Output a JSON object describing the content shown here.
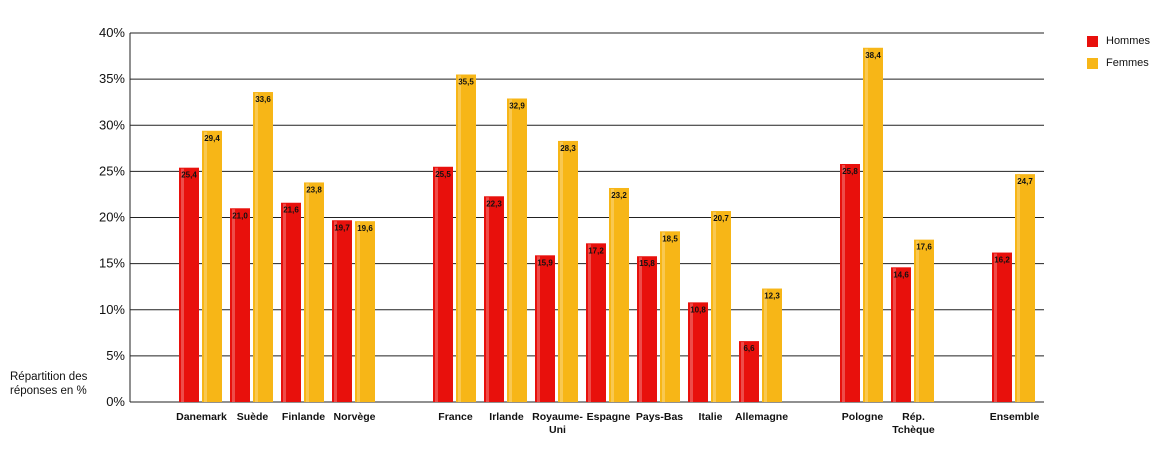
{
  "chart_data": {
    "type": "bar",
    "ylabel": [
      "Répartition des",
      "réponses en %"
    ],
    "ylim": [
      0,
      40
    ],
    "yticks": [
      "0%",
      "5%",
      "10%",
      "15%",
      "20%",
      "25%",
      "30%",
      "35%",
      "40%"
    ],
    "groups": [
      [
        "Danemark",
        "Suède",
        "Finlande",
        "Norvège"
      ],
      [
        "France",
        "Irlande",
        "Royaume-Uni",
        "Espagne",
        "Pays-Bas",
        "Italie",
        "Allemagne"
      ],
      [
        "Pologne",
        "Rép. Tchèque"
      ],
      [
        "Ensemble"
      ]
    ],
    "categories": [
      [
        "Danemark"
      ],
      [
        "Suède"
      ],
      [
        "Finlande"
      ],
      [
        "Norvège"
      ],
      [
        "France"
      ],
      [
        "Irlande"
      ],
      [
        "Royaume-",
        "Uni"
      ],
      [
        "Espagne"
      ],
      [
        "Pays-Bas"
      ],
      [
        "Italie"
      ],
      [
        "Allemagne"
      ],
      [
        "Pologne"
      ],
      [
        "Rép.",
        "Tchèque"
      ],
      [
        "Ensemble"
      ]
    ],
    "series": [
      {
        "name": "Hommes",
        "color": "#e8100c",
        "values": [
          25.4,
          21.0,
          21.6,
          19.7,
          25.5,
          22.3,
          15.9,
          17.2,
          15.8,
          10.8,
          6.6,
          25.8,
          14.6,
          16.2
        ],
        "labels": [
          "25,4",
          "21,0",
          "21,6",
          "19,7",
          "25,5",
          "22,3",
          "15,9",
          "17,2",
          "15,8",
          "10,8",
          "6,6",
          "25,8",
          "14,6",
          "16,2"
        ]
      },
      {
        "name": "Femmes",
        "color": "#f7b617",
        "values": [
          29.4,
          33.6,
          23.8,
          19.6,
          35.5,
          32.9,
          28.3,
          23.2,
          18.5,
          20.7,
          12.3,
          38.4,
          17.6,
          24.7
        ],
        "labels": [
          "29,4",
          "33,6",
          "23,8",
          "19,6",
          "35,5",
          "32,9",
          "28,3",
          "23,2",
          "18,5",
          "20,7",
          "12,3",
          "38,4",
          "17,6",
          "24,7"
        ]
      }
    ],
    "grid": true,
    "legend": "top-right"
  }
}
